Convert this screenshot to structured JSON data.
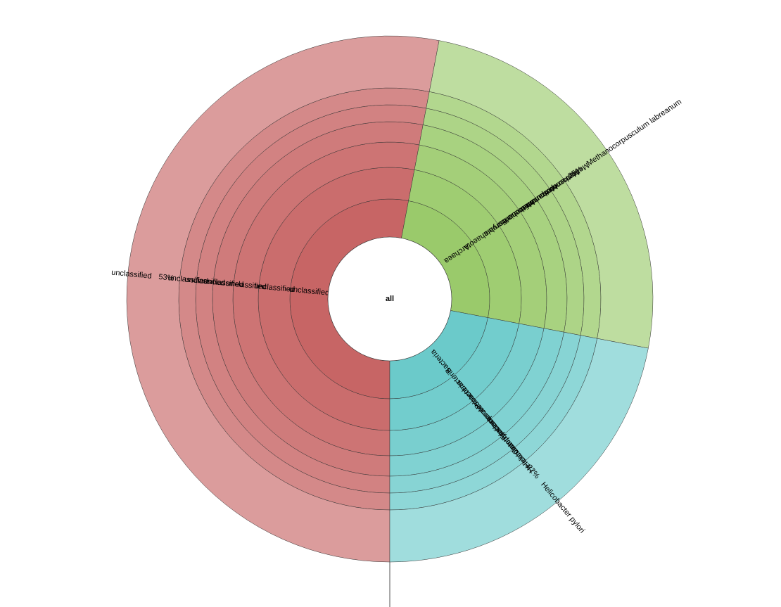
{
  "chart_data": {
    "type": "sunburst",
    "center_label": "all",
    "levels": 7,
    "branches": [
      {
        "path": [
          "unclassified",
          "unclassified",
          "unclassified",
          "unclassified",
          "unclassified",
          "unclassified"
        ],
        "leaf_label": "unclassified",
        "percent": 53,
        "percent_label": "53%",
        "color": "#c55f5f"
      },
      {
        "path": [
          "Archaea",
          "Euryarchaeota",
          "Methanomicrobia",
          "Methanomicrobiales",
          "Methanocorpusculaceae",
          "Methanocorpusculum"
        ],
        "leaf_label": "Methanocorpusculum labreanum",
        "percent": 25,
        "percent_label": "25%",
        "color": "#96c865"
      },
      {
        "path": [
          "Bacteria",
          "Proteobacteria",
          "Epsilonproteobacteria",
          "Campylobacterales",
          "Helicobacteraceae",
          "Helicobacter"
        ],
        "leaf_label": "Helicobacter pylori",
        "percent": 22,
        "percent_label": "22%",
        "color": "#65c8c8"
      }
    ]
  }
}
